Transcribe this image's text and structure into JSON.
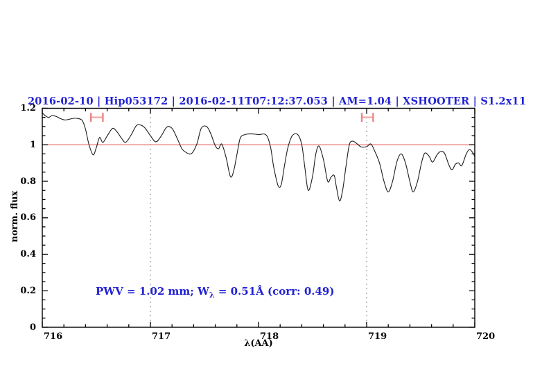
{
  "colors": {
    "accent_blue": "#2121d4",
    "continuum_red": "#e87a7a",
    "marker_bar_pink": "#f5b0b0",
    "marker_cap_pink": "#ec8585",
    "curve_black": "#1c1c1c",
    "frame_black": "#000000",
    "dotted_gray": "#606060"
  },
  "figure": {
    "title": "2016-02-10 | Hip053172 | 2016-02-11T07:12:37.053 | AM=1.04 | XSHOOTER | S1.2x11",
    "annotation": {
      "prefix": "PWV = 1.02 mm; W",
      "subscript": "λ",
      "suffix": " = 0.51Å (corr: 0.49)"
    }
  },
  "chart_data": {
    "type": "line",
    "title": "2016-02-10 | Hip053172 | 2016-02-11T07:12:37.053 | AM=1.04 | XSHOOTER | S1.2x11",
    "xlabel": "λ(AA)",
    "ylabel": "norm. flux",
    "xlim": [
      716,
      720
    ],
    "ylim": [
      0,
      1.2
    ],
    "x_tick_values": [
      716,
      717,
      718,
      719,
      720
    ],
    "x_tick_labels": [
      "716",
      "717",
      "718",
      "719",
      "720"
    ],
    "x_minor_step": 0.2,
    "y_tick_values": [
      0,
      0.2,
      0.4,
      0.6,
      0.8,
      1,
      1.2
    ],
    "y_tick_labels": [
      "0",
      "0.2",
      "0.4",
      "0.6",
      "0.8",
      "1",
      "1.2"
    ],
    "y_minor_step": 0.05,
    "grid": "off",
    "dotted_vlines": [
      717,
      719
    ],
    "continuum_level": 1.0,
    "annotation_text": "PWV = 1.02 mm; Wλ = 0.51Å (corr: 0.49)",
    "band_markers": [
      {
        "x_start": 716.45,
        "x_end": 716.56,
        "y": 1.15
      },
      {
        "x_start": 718.955,
        "x_end": 719.06,
        "y": 1.15
      }
    ],
    "series": [
      {
        "name": "normalized-spectrum",
        "points": [
          [
            716.0,
            1.175
          ],
          [
            716.03,
            1.158
          ],
          [
            716.06,
            1.15
          ],
          [
            716.09,
            1.16
          ],
          [
            716.13,
            1.155
          ],
          [
            716.17,
            1.143
          ],
          [
            716.21,
            1.136
          ],
          [
            716.25,
            1.14
          ],
          [
            716.29,
            1.145
          ],
          [
            716.33,
            1.144
          ],
          [
            716.37,
            1.133
          ],
          [
            716.4,
            1.085
          ],
          [
            716.43,
            1.005
          ],
          [
            716.47,
            0.945
          ],
          [
            716.5,
            0.985
          ],
          [
            716.53,
            1.04
          ],
          [
            716.56,
            1.013
          ],
          [
            716.6,
            1.048
          ],
          [
            716.65,
            1.09
          ],
          [
            716.69,
            1.072
          ],
          [
            716.73,
            1.038
          ],
          [
            716.77,
            1.013
          ],
          [
            716.82,
            1.052
          ],
          [
            716.87,
            1.105
          ],
          [
            716.91,
            1.108
          ],
          [
            716.95,
            1.092
          ],
          [
            717.0,
            1.05
          ],
          [
            717.05,
            1.016
          ],
          [
            717.1,
            1.048
          ],
          [
            717.15,
            1.096
          ],
          [
            717.2,
            1.09
          ],
          [
            717.25,
            1.032
          ],
          [
            717.29,
            0.98
          ],
          [
            717.33,
            0.958
          ],
          [
            717.38,
            0.952
          ],
          [
            717.43,
            1.005
          ],
          [
            717.47,
            1.09
          ],
          [
            717.52,
            1.1
          ],
          [
            717.56,
            1.058
          ],
          [
            717.6,
            0.995
          ],
          [
            717.63,
            0.978
          ],
          [
            717.66,
            1.004
          ],
          [
            717.7,
            0.93
          ],
          [
            717.74,
            0.826
          ],
          [
            717.77,
            0.856
          ],
          [
            717.8,
            0.946
          ],
          [
            717.83,
            1.035
          ],
          [
            717.87,
            1.055
          ],
          [
            717.93,
            1.06
          ],
          [
            718.0,
            1.056
          ],
          [
            718.07,
            1.054
          ],
          [
            718.11,
            0.99
          ],
          [
            718.14,
            0.88
          ],
          [
            718.18,
            0.777
          ],
          [
            718.21,
            0.782
          ],
          [
            718.24,
            0.885
          ],
          [
            718.27,
            0.98
          ],
          [
            718.31,
            1.048
          ],
          [
            718.36,
            1.057
          ],
          [
            718.4,
            1.0
          ],
          [
            718.43,
            0.868
          ],
          [
            718.46,
            0.75
          ],
          [
            718.5,
            0.828
          ],
          [
            718.53,
            0.95
          ],
          [
            718.56,
            0.993
          ],
          [
            718.6,
            0.92
          ],
          [
            718.64,
            0.8
          ],
          [
            718.67,
            0.822
          ],
          [
            718.7,
            0.832
          ],
          [
            718.72,
            0.77
          ],
          [
            718.75,
            0.692
          ],
          [
            718.78,
            0.758
          ],
          [
            718.81,
            0.888
          ],
          [
            718.84,
            1.0
          ],
          [
            718.87,
            1.02
          ],
          [
            718.91,
            1.006
          ],
          [
            718.95,
            0.988
          ],
          [
            719.0,
            0.99
          ],
          [
            719.04,
            1.004
          ],
          [
            719.08,
            0.958
          ],
          [
            719.12,
            0.898
          ],
          [
            719.16,
            0.8
          ],
          [
            719.2,
            0.742
          ],
          [
            719.24,
            0.8
          ],
          [
            719.28,
            0.908
          ],
          [
            719.32,
            0.95
          ],
          [
            719.36,
            0.898
          ],
          [
            719.4,
            0.798
          ],
          [
            719.43,
            0.742
          ],
          [
            719.47,
            0.798
          ],
          [
            719.51,
            0.908
          ],
          [
            719.54,
            0.955
          ],
          [
            719.58,
            0.935
          ],
          [
            719.61,
            0.905
          ],
          [
            719.65,
            0.944
          ],
          [
            719.68,
            0.962
          ],
          [
            719.72,
            0.954
          ],
          [
            719.76,
            0.89
          ],
          [
            719.79,
            0.862
          ],
          [
            719.82,
            0.893
          ],
          [
            719.85,
            0.9
          ],
          [
            719.88,
            0.886
          ],
          [
            719.92,
            0.948
          ],
          [
            719.95,
            0.974
          ],
          [
            719.98,
            0.958
          ],
          [
            720.0,
            0.936
          ]
        ]
      }
    ]
  }
}
